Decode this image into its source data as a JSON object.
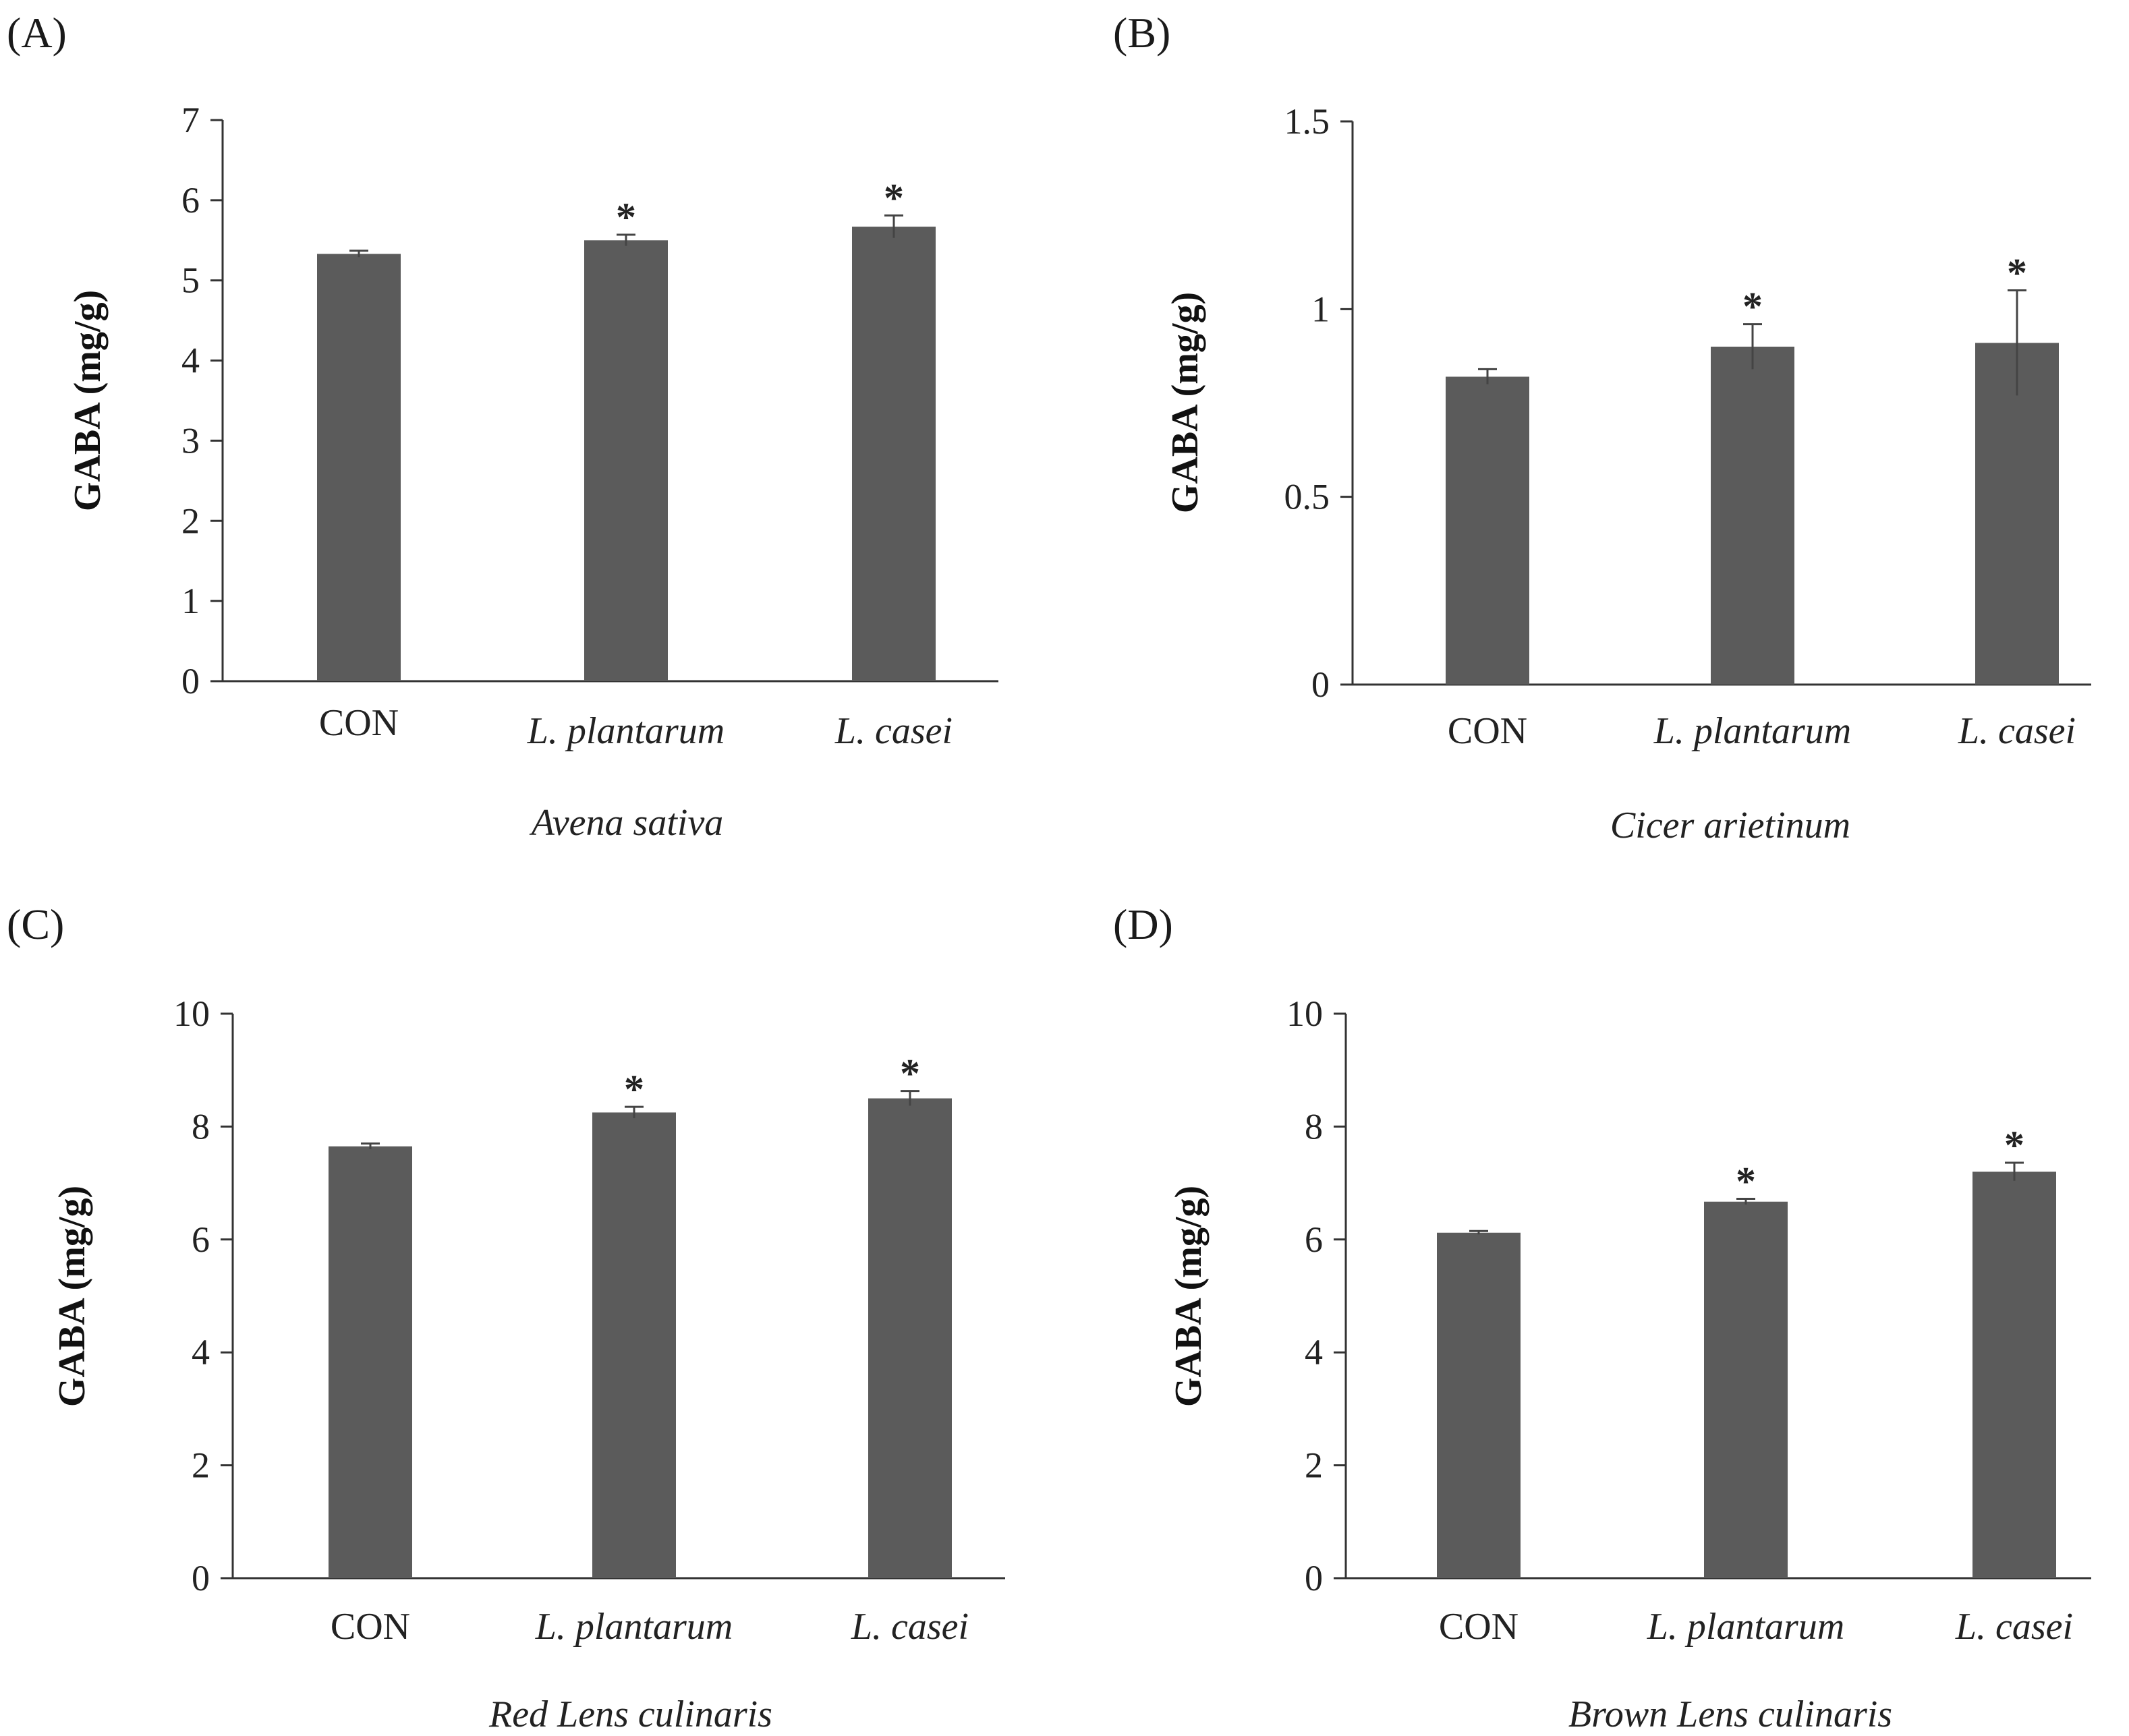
{
  "colors": {
    "bar": "#5b5b5b",
    "axis": "#333333",
    "text": "#222222"
  },
  "chart_data": [
    {
      "panel": "(A)",
      "type": "bar",
      "categories": [
        "CON",
        "L. plantarum",
        "L. casei"
      ],
      "category_italic": [
        false,
        true,
        true
      ],
      "values": [
        5.33,
        5.5,
        5.67
      ],
      "errors": [
        0.04,
        0.07,
        0.14
      ],
      "significance": [
        "",
        "*",
        "*"
      ],
      "ylabel": "GABA (mg/g)",
      "xlabel": "Avena sativa",
      "ylim": [
        0,
        7
      ],
      "yticks": [
        0,
        1,
        2,
        3,
        4,
        5,
        6,
        7
      ],
      "ytick_labels": [
        "0",
        "1",
        "2",
        "3",
        "4",
        "5",
        "6",
        "7"
      ]
    },
    {
      "panel": "(B)",
      "type": "bar",
      "categories": [
        "CON",
        "L. plantarum",
        "L. casei"
      ],
      "category_italic": [
        false,
        true,
        true
      ],
      "values": [
        0.82,
        0.9,
        0.91
      ],
      "errors": [
        0.02,
        0.06,
        0.14
      ],
      "significance": [
        "",
        "*",
        "*"
      ],
      "ylabel": "GABA (mg/g)",
      "xlabel": "Cicer arietinum",
      "ylim": [
        0,
        1.5
      ],
      "yticks": [
        0,
        0.5,
        1,
        1.5
      ],
      "ytick_labels": [
        "0",
        "0.5",
        "1",
        "1.5"
      ]
    },
    {
      "panel": "(C)",
      "type": "bar",
      "categories": [
        "CON",
        "L. plantarum",
        "L. casei"
      ],
      "category_italic": [
        false,
        true,
        true
      ],
      "values": [
        7.65,
        8.25,
        8.5
      ],
      "errors": [
        0.05,
        0.1,
        0.13
      ],
      "significance": [
        "",
        "*",
        "*"
      ],
      "ylabel": "GABA (mg/g)",
      "xlabel": "Red Lens culinaris",
      "ylim": [
        0,
        10
      ],
      "yticks": [
        0,
        2,
        4,
        6,
        8,
        10
      ],
      "ytick_labels": [
        "0",
        "2",
        "4",
        "6",
        "8",
        "10"
      ]
    },
    {
      "panel": "(D)",
      "type": "bar",
      "categories": [
        "CON",
        "L. plantarum",
        "L. casei"
      ],
      "category_italic": [
        false,
        true,
        true
      ],
      "values": [
        6.12,
        6.67,
        7.2
      ],
      "errors": [
        0.03,
        0.05,
        0.16
      ],
      "significance": [
        "",
        "*",
        "*"
      ],
      "ylabel": "GABA (mg/g)",
      "xlabel": "Brown Lens culinaris",
      "ylim": [
        0,
        10
      ],
      "yticks": [
        0,
        2,
        4,
        6,
        8,
        10
      ],
      "ytick_labels": [
        "0",
        "2",
        "4",
        "6",
        "8",
        "10"
      ]
    }
  ]
}
